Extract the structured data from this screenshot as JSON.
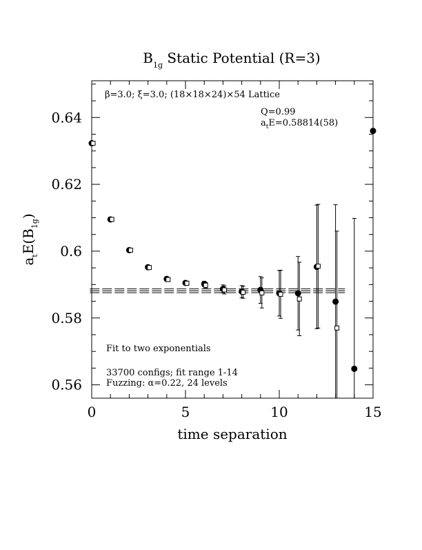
{
  "chart_data": {
    "type": "scatter",
    "title": "B",
    "title_sub": "1g",
    "title_rest": " Static Potential (R=3)",
    "xlabel": "time separation",
    "ylabel_prefix": "a",
    "ylabel_sub1": "t",
    "ylabel_mid": "E(B",
    "ylabel_sub2": "1g",
    "ylabel_suffix": ")",
    "xlim": [
      0,
      15
    ],
    "ylim": [
      0.556,
      0.651
    ],
    "x_ticks": [
      0,
      5,
      10,
      15
    ],
    "x_tick_labels": [
      "0",
      "5",
      "10",
      "15"
    ],
    "y_ticks": [
      0.56,
      0.58,
      0.6,
      0.62,
      0.64
    ],
    "y_tick_labels": [
      "0.56",
      "0.58",
      "0.6",
      "0.62",
      "0.64"
    ],
    "grid": false,
    "annotations": {
      "lattice": "β=3.0; ξ=3.0; (18×18×24)×54 Lattice",
      "q": "Q=0.99",
      "energy_prefix": "a",
      "energy_sub": "t",
      "energy_value": "E=0.58814(58)",
      "fit_label": "Fit to two exponentials",
      "configs": "33700 configs; fit range 1-14",
      "fuzzing": "Fuzzing: α=0.22, 24 levels"
    },
    "fit": {
      "x_start": -0.1,
      "x_end": 13.5,
      "central": 0.58814,
      "upper": 0.58872,
      "lower": 0.58756
    },
    "series": [
      {
        "marker": "filled-circle",
        "points": [
          {
            "x": 0,
            "y": 0.6323,
            "err": 0.0003
          },
          {
            "x": 1,
            "y": 0.6095,
            "err": 0.0004
          },
          {
            "x": 2,
            "y": 0.6003,
            "err": 0.0004
          },
          {
            "x": 3,
            "y": 0.5952,
            "err": 0.0004
          },
          {
            "x": 4,
            "y": 0.5917,
            "err": 0.0005
          },
          {
            "x": 5,
            "y": 0.5905,
            "err": 0.0006
          },
          {
            "x": 6,
            "y": 0.5902,
            "err": 0.0008
          },
          {
            "x": 7,
            "y": 0.5887,
            "err": 0.0012
          },
          {
            "x": 8,
            "y": 0.5879,
            "err": 0.0018
          },
          {
            "x": 9,
            "y": 0.5884,
            "err": 0.004
          },
          {
            "x": 10,
            "y": 0.5874,
            "err": 0.0068
          },
          {
            "x": 11,
            "y": 0.5874,
            "err": 0.011
          },
          {
            "x": 12,
            "y": 0.5953,
            "err": 0.0185
          },
          {
            "x": 13,
            "y": 0.5849,
            "err": 0.029
          },
          {
            "x": 14,
            "y": 0.5648,
            "err": 0.045
          },
          {
            "x": 15,
            "y": 0.636,
            "err": 0.14
          }
        ]
      },
      {
        "marker": "open-square",
        "points": [
          {
            "x": 0,
            "y": 0.6323,
            "err": 0.0002
          },
          {
            "x": 1,
            "y": 0.6095,
            "err": 0.0003
          },
          {
            "x": 2,
            "y": 0.6003,
            "err": 0.0003
          },
          {
            "x": 3,
            "y": 0.5951,
            "err": 0.0004
          },
          {
            "x": 4,
            "y": 0.5915,
            "err": 0.0005
          },
          {
            "x": 5,
            "y": 0.5904,
            "err": 0.0006
          },
          {
            "x": 6,
            "y": 0.5898,
            "err": 0.0008
          },
          {
            "x": 7,
            "y": 0.5884,
            "err": 0.0012
          },
          {
            "x": 8,
            "y": 0.5877,
            "err": 0.0018
          },
          {
            "x": 9,
            "y": 0.5875,
            "err": 0.0045
          },
          {
            "x": 10,
            "y": 0.5871,
            "err": 0.0072
          },
          {
            "x": 11,
            "y": 0.5857,
            "err": 0.011
          },
          {
            "x": 12,
            "y": 0.5955,
            "err": 0.0185
          },
          {
            "x": 13,
            "y": 0.577,
            "err": 0.029
          }
        ]
      }
    ]
  }
}
